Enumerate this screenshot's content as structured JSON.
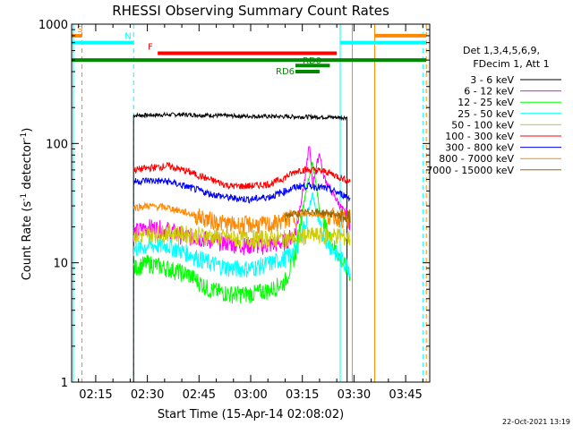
{
  "chart_data": {
    "type": "line",
    "title": "RHESSI Observing Summary Count Rates",
    "xlabel": "Start Time (15-Apr-14 02:08:02)",
    "ylabel_main": "Count Rate (s",
    "ylabel_sup1": "-1",
    "ylabel_mid": " detector",
    "ylabel_sup2": "-1",
    "ylabel_end": ")",
    "y_scale": "log",
    "ylim": [
      1,
      1000
    ],
    "xlim_minutes": [
      128,
      232
    ],
    "x_ticks": [
      {
        "m": 135,
        "label": "02:15"
      },
      {
        "m": 150,
        "label": "02:30"
      },
      {
        "m": 165,
        "label": "02:45"
      },
      {
        "m": 180,
        "label": "03:00"
      },
      {
        "m": 195,
        "label": "03:15"
      },
      {
        "m": 210,
        "label": "03:30"
      },
      {
        "m": 225,
        "label": "03:45"
      }
    ],
    "y_ticks": [
      {
        "v": 1,
        "label": "1"
      },
      {
        "v": 10,
        "label": "10"
      },
      {
        "v": 100,
        "label": "100"
      },
      {
        "v": 1000,
        "label": "1000"
      }
    ],
    "legend_title": [
      "Det 1,3,4,5,6,9,",
      "FDecim 1, Att 1"
    ],
    "legend_placement": "right",
    "series": [
      {
        "name": "3 - 6 keV",
        "color": "#000000",
        "points": [
          [
            146,
            172
          ],
          [
            160,
            175
          ],
          [
            175,
            170
          ],
          [
            190,
            168
          ],
          [
            200,
            167
          ],
          [
            208,
            165
          ]
        ]
      },
      {
        "name": "6 - 12 keV",
        "color": "#ff00ff",
        "points": [
          [
            146,
            18
          ],
          [
            150,
            20
          ],
          [
            156,
            19
          ],
          [
            160,
            17
          ],
          [
            166,
            16
          ],
          [
            172,
            15
          ],
          [
            178,
            14
          ],
          [
            184,
            14
          ],
          [
            190,
            15
          ],
          [
            193,
            18
          ],
          [
            196,
            55
          ],
          [
            197,
            100
          ],
          [
            198,
            45
          ],
          [
            200,
            85
          ],
          [
            201,
            55
          ],
          [
            203,
            42
          ],
          [
            206,
            30
          ],
          [
            209,
            22
          ]
        ]
      },
      {
        "name": "12 - 25 keV",
        "color": "#00ff00",
        "points": [
          [
            146,
            9
          ],
          [
            150,
            10
          ],
          [
            156,
            9
          ],
          [
            162,
            8
          ],
          [
            168,
            6
          ],
          [
            174,
            5.5
          ],
          [
            180,
            5.5
          ],
          [
            186,
            6
          ],
          [
            190,
            7
          ],
          [
            193,
            12
          ],
          [
            196,
            40
          ],
          [
            198,
            70
          ],
          [
            200,
            28
          ],
          [
            203,
            16
          ],
          [
            206,
            11
          ],
          [
            209,
            8
          ]
        ]
      },
      {
        "name": "25 - 50 keV",
        "color": "#00ffff",
        "points": [
          [
            146,
            13
          ],
          [
            150,
            14
          ],
          [
            156,
            14
          ],
          [
            162,
            12
          ],
          [
            168,
            10
          ],
          [
            174,
            9
          ],
          [
            180,
            9
          ],
          [
            186,
            10
          ],
          [
            190,
            11
          ],
          [
            193,
            13
          ],
          [
            196,
            22
          ],
          [
            198,
            38
          ],
          [
            200,
            20
          ],
          [
            203,
            14
          ],
          [
            206,
            11
          ],
          [
            209,
            9
          ]
        ]
      },
      {
        "name": "50 - 100 keV",
        "color": "#cccc00",
        "points": [
          [
            146,
            17
          ],
          [
            156,
            18
          ],
          [
            166,
            17
          ],
          [
            176,
            16
          ],
          [
            186,
            16
          ],
          [
            192,
            16
          ],
          [
            196,
            17
          ],
          [
            200,
            17
          ],
          [
            205,
            17
          ],
          [
            209,
            16
          ]
        ]
      },
      {
        "name": "100 - 300 keV",
        "color": "#ff0000",
        "points": [
          [
            146,
            60
          ],
          [
            150,
            62
          ],
          [
            156,
            65
          ],
          [
            162,
            58
          ],
          [
            168,
            50
          ],
          [
            174,
            44
          ],
          [
            180,
            44
          ],
          [
            186,
            46
          ],
          [
            190,
            52
          ],
          [
            194,
            60
          ],
          [
            198,
            60
          ],
          [
            202,
            58
          ],
          [
            206,
            52
          ],
          [
            209,
            48
          ]
        ]
      },
      {
        "name": "300 - 800 keV",
        "color": "#0000ff",
        "points": [
          [
            146,
            48
          ],
          [
            150,
            49
          ],
          [
            156,
            48
          ],
          [
            162,
            43
          ],
          [
            168,
            38
          ],
          [
            174,
            35
          ],
          [
            180,
            34
          ],
          [
            186,
            36
          ],
          [
            190,
            40
          ],
          [
            194,
            44
          ],
          [
            198,
            44
          ],
          [
            202,
            42
          ],
          [
            206,
            38
          ],
          [
            209,
            35
          ]
        ]
      },
      {
        "name": "800 - 7000 keV",
        "color": "#ff8800",
        "points": [
          [
            146,
            29
          ],
          [
            150,
            30
          ],
          [
            156,
            29
          ],
          [
            162,
            26
          ],
          [
            168,
            23
          ],
          [
            174,
            21
          ],
          [
            180,
            21
          ],
          [
            186,
            21
          ],
          [
            190,
            23
          ],
          [
            194,
            25
          ],
          [
            198,
            26
          ],
          [
            202,
            25
          ],
          [
            206,
            24
          ],
          [
            209,
            22
          ]
        ]
      },
      {
        "name": "7000 - 15000 keV",
        "color": "#996600",
        "points": [
          [
            190,
            25
          ],
          [
            194,
            26
          ],
          [
            198,
            27
          ],
          [
            202,
            26
          ],
          [
            206,
            25
          ],
          [
            209,
            24
          ]
        ]
      }
    ],
    "annotations": [
      {
        "label": "S",
        "color": "#ff8800",
        "bar": [
          128,
          131
        ],
        "value": 800
      },
      {
        "label": "N",
        "color": "#00ffff",
        "bar": [
          128,
          146
        ],
        "value": 700
      },
      {
        "label": "F",
        "color": "#ff0000",
        "bar": [
          153,
          205
        ],
        "value": 570
      },
      {
        "label": "RD0",
        "color": "#008800",
        "bar": [
          193,
          203
        ],
        "value": 450
      },
      {
        "label": "RD6",
        "color": "#008800",
        "bar": [
          193,
          200
        ],
        "value": 400
      },
      {
        "label": "",
        "color": "#ff8800",
        "bar": [
          216,
          231
        ],
        "value": 800
      },
      {
        "label": "",
        "color": "#00ffff",
        "bar": [
          206,
          231
        ],
        "value": 700
      },
      {
        "label": "",
        "color": "#008800",
        "bar": [
          128,
          231
        ],
        "value": 500
      }
    ],
    "vertical_markers": [
      {
        "m": 128.5,
        "color": "#00ffff",
        "style": "solid"
      },
      {
        "m": 131,
        "color": "#ff8800",
        "style": "dashed"
      },
      {
        "m": 146,
        "color": "#00ffff",
        "style": "dashed"
      },
      {
        "m": 206,
        "color": "#00ffff",
        "style": "solid"
      },
      {
        "m": 209.5,
        "color": "#ff8800",
        "style": "solid"
      },
      {
        "m": 216,
        "color": "#ff8800",
        "style": "solid"
      },
      {
        "m": 230,
        "color": "#00ffff",
        "style": "dashed"
      },
      {
        "m": 231,
        "color": "#ff8800",
        "style": "dashed"
      }
    ]
  },
  "footer_date": "22-Oct-2021 13:19"
}
